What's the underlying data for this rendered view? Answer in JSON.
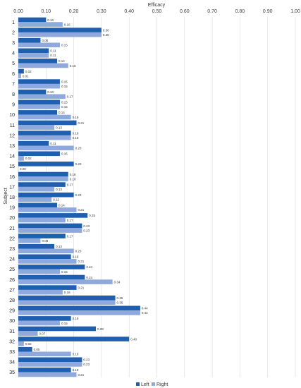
{
  "chart_data": {
    "type": "bar",
    "orientation": "horizontal",
    "title": "",
    "xlabel": "Efficacy",
    "ylabel": "Subject",
    "xlim": [
      0,
      1
    ],
    "x_ticks": [
      "0.00",
      "0.10",
      "0.20",
      "0.30",
      "0.40",
      "0.50",
      "0.60",
      "0.70",
      "0.80",
      "0.90",
      "1.00"
    ],
    "x_axis_position": "top",
    "grid": true,
    "legend_position": "bottom",
    "categories": [
      "1",
      "2",
      "3",
      "4",
      "5",
      "6",
      "7",
      "8",
      "9",
      "10",
      "11",
      "12",
      "13",
      "14",
      "15",
      "16",
      "17",
      "18",
      "19",
      "20",
      "21",
      "22",
      "23",
      "24",
      "25",
      "26",
      "27",
      "28",
      "29",
      "30",
      "31",
      "32",
      "33",
      "34",
      "35"
    ],
    "series": [
      {
        "name": "Left",
        "color": "#1f5fb0",
        "values": [
          0.1,
          0.3,
          0.08,
          0.11,
          0.14,
          0.02,
          0.15,
          0.1,
          0.15,
          0.14,
          0.21,
          0.19,
          0.11,
          0.15,
          0.2,
          0.18,
          0.17,
          0.2,
          0.14,
          0.25,
          0.23,
          0.17,
          0.13,
          0.19,
          0.24,
          0.24,
          0.21,
          0.35,
          0.44,
          0.19,
          0.28,
          0.4,
          0.05,
          0.23,
          0.19
        ],
        "labels": [
          "0.10",
          "0.30",
          "0.08",
          "0.11",
          "0.14",
          "0.02",
          "0.15",
          "0.10",
          "0.15",
          "0.14",
          "0.21",
          "0.19",
          "0.11",
          "0.15",
          "0.20",
          "0.18",
          "0.17",
          "0.20",
          "0.14",
          "0.25",
          "0.23",
          "0.17",
          "0.13",
          "0.19",
          "0.24",
          "0.24",
          "0.21",
          "0.35",
          "0.44",
          "0.19",
          "0.28",
          "0.40",
          "0.05",
          "0.23",
          "0.19"
        ]
      },
      {
        "name": "Right",
        "color": "#8fa9dc",
        "values": [
          0.16,
          0.3,
          0.15,
          0.11,
          0.18,
          0.01,
          0.15,
          0.17,
          0.15,
          0.19,
          0.13,
          0.19,
          0.2,
          0.02,
          0.0,
          0.18,
          0.13,
          0.12,
          0.21,
          0.17,
          0.23,
          0.08,
          0.2,
          0.21,
          0.15,
          0.34,
          0.16,
          0.35,
          0.44,
          0.15,
          0.07,
          0.02,
          0.19,
          0.23,
          0.21
        ],
        "labels": [
          "0.16",
          "0.30",
          "0.15",
          "0.11",
          "0.18",
          "0.01",
          "0.15",
          "0.17",
          "0.15",
          "0.19",
          "0.13",
          "0.19",
          "0.20",
          "0.02",
          "0.00",
          "0.18",
          "0.13",
          "0.12",
          "0.21",
          "0.17",
          "0.23",
          "0.08",
          "0.20",
          "0.21",
          "0.15",
          "0.34",
          "0.16",
          "0.35",
          "0.44",
          "0.15",
          "0.07",
          "0.02",
          "0.19",
          "0.23",
          "0.21"
        ]
      }
    ]
  }
}
